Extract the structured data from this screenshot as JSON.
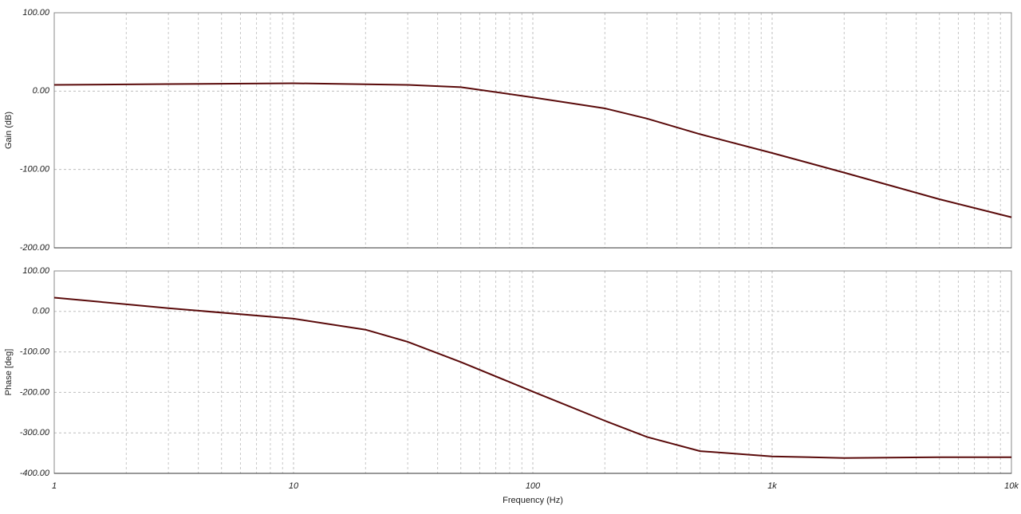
{
  "chart_data": [
    {
      "type": "line",
      "ylabel": "Gain (dB)",
      "xscale": "log",
      "xlim": [
        1,
        10000
      ],
      "ylim": [
        -200,
        100
      ],
      "xticks": [
        1,
        10,
        100,
        {
          "value": 1000,
          "label": "1k"
        },
        {
          "value": 10000,
          "label": "10k"
        }
      ],
      "xtick_labels": false,
      "x_minor_gridlines": [
        2,
        3,
        4,
        5,
        6,
        7,
        8,
        9,
        20,
        30,
        40,
        50,
        60,
        70,
        80,
        90,
        200,
        300,
        400,
        500,
        600,
        700,
        800,
        900,
        2000,
        3000,
        4000,
        5000,
        6000,
        7000,
        8000,
        9000
      ],
      "yticks": [
        {
          "value": 100,
          "label": "100.00"
        },
        {
          "value": 0,
          "label": "0.00"
        },
        {
          "value": -100,
          "label": "-100.00"
        },
        {
          "value": -200,
          "label": "-200.00"
        }
      ],
      "grid": true,
      "x": [
        1,
        3,
        10,
        30,
        50,
        100,
        200,
        300,
        500,
        1000,
        2000,
        5000,
        10000
      ],
      "series": [
        {
          "color": "#5a0a0a",
          "values": [
            8,
            9,
            10,
            8,
            5,
            -8,
            -22,
            -35,
            -55,
            -79,
            -104,
            -138,
            -161
          ]
        }
      ]
    },
    {
      "type": "line",
      "ylabel": "Phase [deg]",
      "xlabel": "Frequency (Hz)",
      "xscale": "log",
      "xlim": [
        1,
        10000
      ],
      "ylim": [
        -400,
        100
      ],
      "xticks": [
        1,
        10,
        100,
        {
          "value": 1000,
          "label": "1k"
        },
        {
          "value": 10000,
          "label": "10k"
        }
      ],
      "xtick_labels": true,
      "x_minor_gridlines": [
        2,
        3,
        4,
        5,
        6,
        7,
        8,
        9,
        20,
        30,
        40,
        50,
        60,
        70,
        80,
        90,
        200,
        300,
        400,
        500,
        600,
        700,
        800,
        900,
        2000,
        3000,
        4000,
        5000,
        6000,
        7000,
        8000,
        9000
      ],
      "yticks": [
        {
          "value": 100,
          "label": "100.00"
        },
        {
          "value": 0,
          "label": "0.00"
        },
        {
          "value": -100,
          "label": "-100.00"
        },
        {
          "value": -200,
          "label": "-200.00"
        },
        {
          "value": -300,
          "label": "-300.00"
        },
        {
          "value": -400,
          "label": "-400.00"
        }
      ],
      "grid": true,
      "x": [
        1,
        3,
        10,
        20,
        30,
        50,
        100,
        200,
        300,
        500,
        1000,
        2000,
        5000,
        10000
      ],
      "series": [
        {
          "color": "#5a0a0a",
          "values": [
            34,
            8,
            -18,
            -45,
            -75,
            -125,
            -198,
            -270,
            -310,
            -345,
            -358,
            -362,
            -360,
            -360
          ]
        }
      ]
    }
  ]
}
